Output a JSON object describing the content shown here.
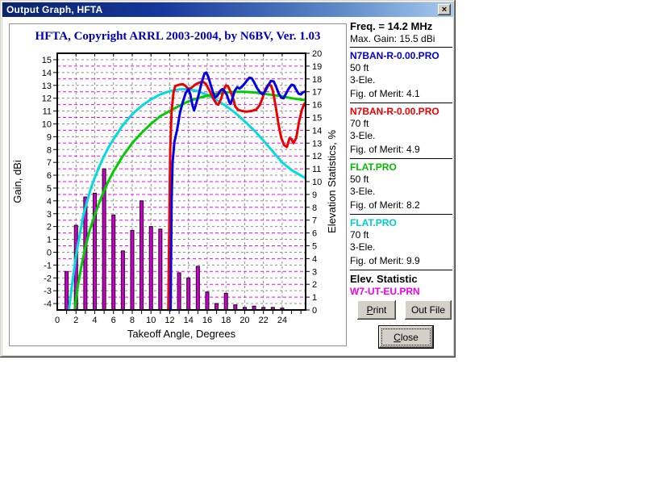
{
  "window": {
    "title": "Output Graph, HFTA",
    "close_glyph": "×"
  },
  "chart_data": {
    "type": "line",
    "title": "HFTA, Copyright ARRL 2003-2004, by N6BV, Ver. 1.03",
    "xlabel": "Takeoff Angle, Degrees",
    "ylabel_left": "Gain, dBi",
    "ylabel_right": "Elevation Statistics, %",
    "x_range": [
      0,
      26.5
    ],
    "y_left_range": [
      -4.5,
      15.5
    ],
    "y_right_range": [
      0,
      20
    ],
    "x_ticks_labeled": [
      0,
      2,
      4,
      6,
      8,
      10,
      12,
      14,
      16,
      18,
      20,
      22,
      24
    ],
    "y_left_ticks": [
      -4,
      -3,
      -2,
      -1,
      0,
      1,
      2,
      3,
      4,
      5,
      6,
      7,
      8,
      9,
      10,
      11,
      12,
      13,
      14,
      15
    ],
    "y_right_ticks": [
      0,
      1,
      2,
      3,
      4,
      5,
      6,
      7,
      8,
      9,
      10,
      11,
      12,
      13,
      14,
      15,
      16,
      17,
      18,
      19,
      20
    ],
    "grid": {
      "v_color": "#909090",
      "h_gray": "#909090",
      "h_magenta": "#FF00FF"
    },
    "bars": {
      "name": "W7-UT-EU.PRN elevation statistic",
      "axis": "right",
      "fill": "#CC00CC",
      "stroke": "#1A001A",
      "x": [
        1,
        2,
        3,
        4,
        5,
        6,
        7,
        8,
        9,
        10,
        11,
        12,
        13,
        14,
        15,
        16,
        17,
        18,
        19,
        20,
        21,
        22,
        23,
        24
      ],
      "values": [
        3.0,
        6.6,
        8.8,
        9.1,
        11.0,
        7.4,
        4.6,
        6.2,
        8.5,
        6.5,
        6.3,
        4.0,
        2.9,
        2.5,
        3.4,
        1.4,
        0.5,
        1.3,
        0.4,
        0.2,
        0.3,
        0.2,
        0.2,
        0.15
      ]
    },
    "series": [
      {
        "name": "FLAT.PRO 70 ft",
        "color": "#00DDDD",
        "points": [
          [
            1.25,
            -4.5
          ],
          [
            1.6,
            -2.4
          ],
          [
            2,
            -0.3
          ],
          [
            2.4,
            1.4
          ],
          [
            2.8,
            2.9
          ],
          [
            3.2,
            4.0
          ],
          [
            3.6,
            5.0
          ],
          [
            4,
            5.8
          ],
          [
            4.5,
            6.7
          ],
          [
            5,
            7.5
          ],
          [
            5.5,
            8.2
          ],
          [
            6,
            8.8
          ],
          [
            7,
            9.9
          ],
          [
            8,
            10.75
          ],
          [
            9,
            11.4
          ],
          [
            10,
            11.9
          ],
          [
            11,
            12.3
          ],
          [
            12,
            12.55
          ],
          [
            13,
            12.68
          ],
          [
            14,
            12.7
          ],
          [
            15,
            12.55
          ],
          [
            16,
            12.25
          ],
          [
            17,
            11.85
          ],
          [
            18,
            11.4
          ],
          [
            19,
            10.85
          ],
          [
            20,
            10.2
          ],
          [
            21,
            9.5
          ],
          [
            22,
            8.7
          ],
          [
            23,
            7.85
          ],
          [
            24,
            7.0
          ],
          [
            25,
            6.4
          ],
          [
            26.4,
            5.8
          ]
        ]
      },
      {
        "name": "FLAT.PRO 50 ft",
        "color": "#00CC00",
        "points": [
          [
            1.85,
            -4.5
          ],
          [
            2.2,
            -2.6
          ],
          [
            2.6,
            -1.0
          ],
          [
            3,
            0.4
          ],
          [
            3.5,
            1.8
          ],
          [
            4,
            2.9
          ],
          [
            4.5,
            3.9
          ],
          [
            5,
            4.8
          ],
          [
            5.5,
            5.6
          ],
          [
            6,
            6.3
          ],
          [
            7,
            7.5
          ],
          [
            8,
            8.5
          ],
          [
            9,
            9.3
          ],
          [
            10,
            10.0
          ],
          [
            11,
            10.6
          ],
          [
            12,
            11.0
          ],
          [
            13,
            11.4
          ],
          [
            14,
            11.75
          ],
          [
            15,
            12.0
          ],
          [
            16,
            12.2
          ],
          [
            17,
            12.35
          ],
          [
            18,
            12.45
          ],
          [
            19,
            12.5
          ],
          [
            20,
            12.5
          ],
          [
            21,
            12.45
          ],
          [
            22,
            12.35
          ],
          [
            23,
            12.25
          ],
          [
            24,
            12.15
          ],
          [
            25,
            12.0
          ],
          [
            26.4,
            11.85
          ]
        ]
      },
      {
        "name": "N7BAN-R-0.00.PRO 70 ft",
        "color": "#EE0000",
        "points": [
          [
            11.85,
            -4.5
          ],
          [
            11.95,
            2.0
          ],
          [
            12.05,
            8.0
          ],
          [
            12.2,
            11.0
          ],
          [
            12.4,
            12.4
          ],
          [
            12.6,
            12.95
          ],
          [
            13.0,
            13.05
          ],
          [
            13.4,
            13.1
          ],
          [
            13.7,
            12.95
          ],
          [
            14.0,
            12.7
          ],
          [
            14.3,
            12.8
          ],
          [
            14.7,
            13.05
          ],
          [
            15.1,
            13.2
          ],
          [
            15.5,
            13.3
          ],
          [
            15.8,
            13.15
          ],
          [
            16.1,
            12.8
          ],
          [
            16.4,
            12.35
          ],
          [
            16.7,
            11.9
          ],
          [
            17.0,
            11.55
          ],
          [
            17.2,
            11.5
          ],
          [
            17.5,
            12.0
          ],
          [
            17.8,
            12.75
          ],
          [
            18.0,
            13.0
          ],
          [
            18.2,
            12.95
          ],
          [
            18.5,
            12.5
          ],
          [
            18.8,
            11.9
          ],
          [
            19.0,
            11.35
          ],
          [
            19.3,
            11.1
          ],
          [
            19.7,
            11.0
          ],
          [
            20.2,
            10.95
          ],
          [
            20.7,
            11.0
          ],
          [
            21.2,
            11.1
          ],
          [
            21.6,
            11.45
          ],
          [
            21.9,
            12.0
          ],
          [
            22.2,
            12.7
          ],
          [
            22.5,
            13.05
          ],
          [
            22.8,
            13.0
          ],
          [
            23.0,
            12.6
          ],
          [
            23.3,
            11.4
          ],
          [
            23.6,
            10.0
          ],
          [
            23.9,
            8.9
          ],
          [
            24.2,
            8.35
          ],
          [
            24.5,
            8.2
          ],
          [
            24.8,
            8.9
          ],
          [
            25.0,
            8.8
          ],
          [
            25.2,
            8.5
          ],
          [
            25.5,
            8.9
          ],
          [
            25.8,
            10.2
          ],
          [
            26.1,
            11.1
          ],
          [
            26.4,
            11.6
          ]
        ]
      },
      {
        "name": "N7BAN-R-0.00.PRO 50 ft",
        "color": "#0000E6",
        "points": [
          [
            12.1,
            -4.5
          ],
          [
            12.2,
            4.0
          ],
          [
            12.3,
            7.0
          ],
          [
            12.5,
            8.6
          ],
          [
            12.8,
            9.6
          ],
          [
            13.1,
            10.9
          ],
          [
            13.4,
            11.7
          ],
          [
            13.7,
            12.4
          ],
          [
            14.0,
            12.7
          ],
          [
            14.2,
            12.3
          ],
          [
            14.45,
            11.4
          ],
          [
            14.6,
            11.05
          ],
          [
            14.8,
            11.5
          ],
          [
            15.1,
            12.3
          ],
          [
            15.4,
            13.2
          ],
          [
            15.7,
            13.9
          ],
          [
            15.9,
            14.0
          ],
          [
            16.1,
            13.7
          ],
          [
            16.35,
            13.1
          ],
          [
            16.6,
            12.5
          ],
          [
            16.85,
            12.05
          ],
          [
            17.1,
            12.2
          ],
          [
            17.35,
            12.55
          ],
          [
            17.6,
            12.7
          ],
          [
            17.85,
            12.55
          ],
          [
            18.1,
            12.25
          ],
          [
            18.35,
            11.7
          ],
          [
            18.5,
            11.55
          ],
          [
            18.7,
            12.0
          ],
          [
            18.95,
            12.6
          ],
          [
            19.2,
            12.85
          ],
          [
            19.45,
            12.75
          ],
          [
            19.7,
            12.9
          ],
          [
            19.95,
            13.1
          ],
          [
            20.2,
            13.35
          ],
          [
            20.5,
            13.6
          ],
          [
            20.75,
            13.55
          ],
          [
            21.0,
            13.25
          ],
          [
            21.3,
            12.8
          ],
          [
            21.6,
            12.5
          ],
          [
            21.9,
            12.3
          ],
          [
            22.2,
            12.55
          ],
          [
            22.5,
            13.0
          ],
          [
            22.8,
            13.35
          ],
          [
            23.1,
            13.3
          ],
          [
            23.35,
            12.9
          ],
          [
            23.6,
            12.4
          ],
          [
            23.9,
            12.05
          ],
          [
            24.15,
            12.0
          ],
          [
            24.4,
            12.35
          ],
          [
            24.7,
            12.75
          ],
          [
            25.0,
            13.05
          ],
          [
            25.25,
            13.0
          ],
          [
            25.5,
            12.65
          ],
          [
            25.75,
            12.35
          ],
          [
            26.0,
            12.3
          ],
          [
            26.2,
            12.45
          ],
          [
            26.4,
            12.5
          ]
        ]
      }
    ]
  },
  "info_panel": {
    "freq": "Freq. = 14.2 MHz",
    "max_gain": "Max. Gain: 15.5 dBi",
    "entries": [
      {
        "file": "N7BAN-R-0.00.PRO",
        "color": "#0000CC",
        "height": "50 ft",
        "elements": "3-Ele.",
        "merit": "Fig. of Merit:  4.1"
      },
      {
        "file": "N7BAN-R-0.00.PRO",
        "color": "#EE0000",
        "height": "70 ft",
        "elements": "3-Ele.",
        "merit": "Fig. of Merit:  4.9"
      },
      {
        "file": "FLAT.PRO",
        "color": "#00BB00",
        "height": "50 ft",
        "elements": "3-Ele.",
        "merit": "Fig. of Merit:  8.2"
      },
      {
        "file": "FLAT.PRO",
        "color": "#00CCCC",
        "height": "70 ft",
        "elements": "3-Ele.",
        "merit": "Fig. of Merit:  9.9"
      }
    ],
    "elev_statistic_label": "Elev. Statistic",
    "elev_statistic_file": "W7-UT-EU.PRN",
    "elev_statistic_color": "#EE00EE"
  },
  "buttons": {
    "print": {
      "accel": "P",
      "rest": "rint"
    },
    "out_file": {
      "label": "Out File"
    },
    "close": {
      "accel": "C",
      "rest": "lose"
    }
  }
}
